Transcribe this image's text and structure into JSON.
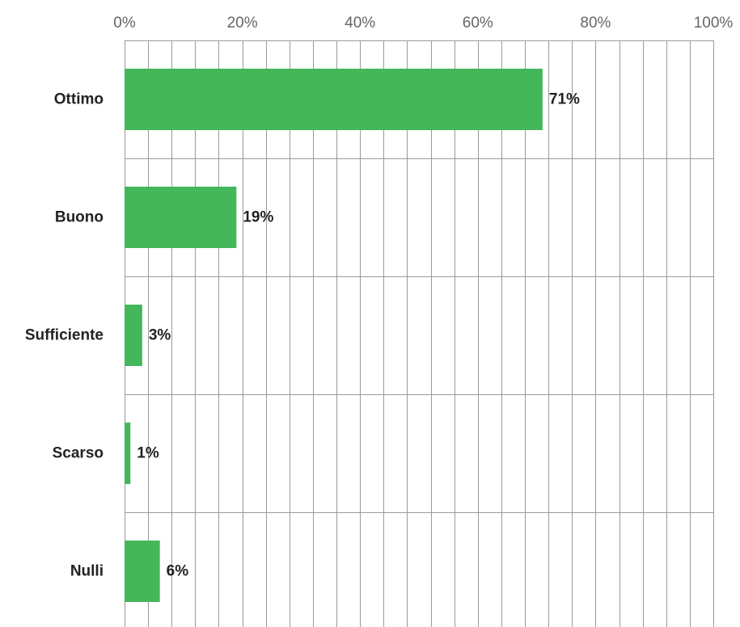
{
  "chart_data": {
    "type": "bar",
    "orientation": "horizontal",
    "title": "",
    "xlabel": "",
    "ylabel": "",
    "categories": [
      "Ottimo",
      "Buono",
      "Sufficiente",
      "Scarso",
      "Nulli"
    ],
    "values": [
      71,
      19,
      3,
      1,
      6
    ],
    "value_labels": [
      "71%",
      "19%",
      "3%",
      "1%",
      "6%"
    ],
    "xlim": [
      0,
      100
    ],
    "tick_values": [
      0,
      20,
      40,
      60,
      80,
      100
    ],
    "tick_labels": [
      "0%",
      "20%",
      "40%",
      "60%",
      "80%",
      "100%"
    ],
    "minor_step": 4,
    "tick_position": "top",
    "grid": true,
    "legend": "none",
    "bar_color": "#43b75a",
    "grid_color": "#9a9a9a"
  }
}
